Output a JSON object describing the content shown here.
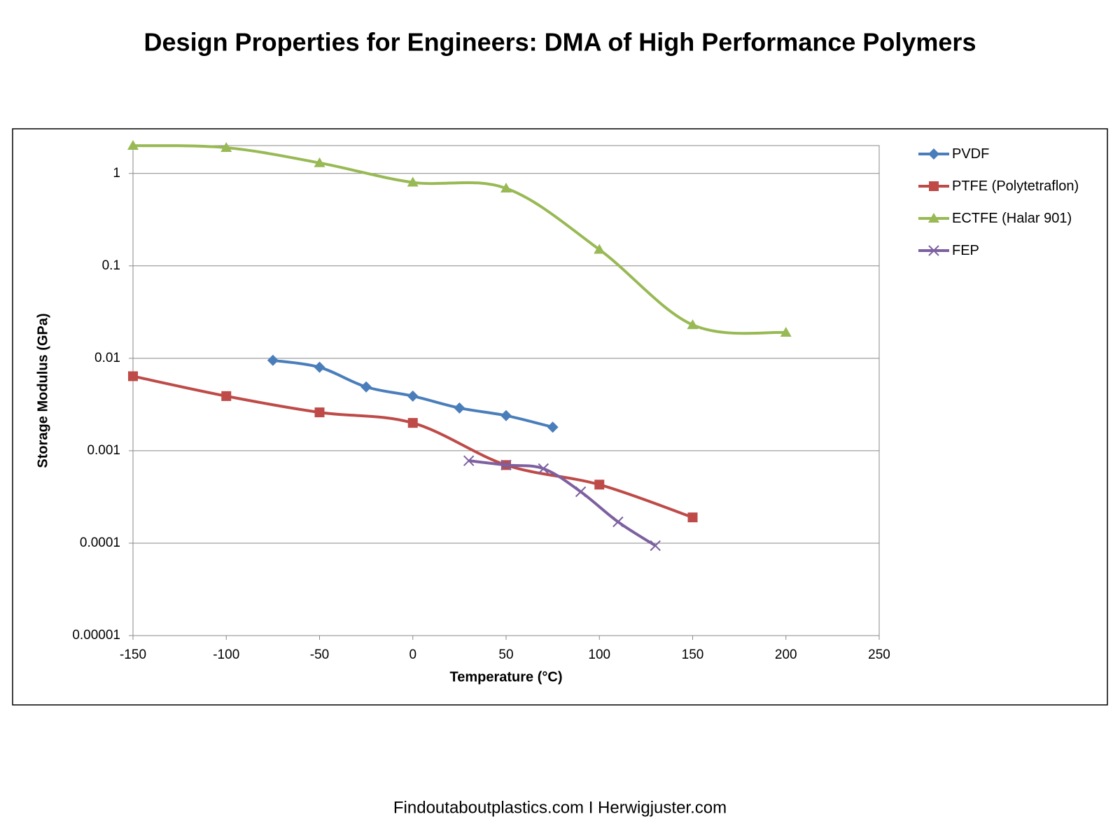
{
  "chart_data": {
    "type": "line",
    "title": "Design Properties for Engineers: DMA of High Performance Polymers",
    "x_label": "Temperature (°C)",
    "y_label": "Storage Modulus (GPa)",
    "footer": "Findoutaboutplastics.com I Herwigjuster.com",
    "xlim": [
      -150,
      250
    ],
    "xticks": [
      -150,
      -100,
      -50,
      0,
      50,
      100,
      150,
      200,
      250
    ],
    "ylim": [
      1e-05,
      2
    ],
    "y_scale": "log",
    "yticks": [
      {
        "value": 1e-05,
        "label": "0.00001"
      },
      0.0001,
      0.001,
      0.01,
      0.1,
      1
    ],
    "grid": true,
    "legend": "right",
    "smooth": true,
    "series": [
      {
        "name": "PVDF",
        "color": "#4a7ebb",
        "marker": "diamond",
        "x": [
          -75,
          -50,
          -25,
          0,
          25,
          50,
          75
        ],
        "values": [
          0.0095,
          0.008,
          0.0049,
          0.0039,
          0.0029,
          0.0024,
          0.0018
        ]
      },
      {
        "name": "PTFE (Polytetraflon)",
        "color": "#be4b48",
        "marker": "square",
        "x": [
          -150,
          -100,
          -50,
          0,
          50,
          100,
          150
        ],
        "values": [
          0.0064,
          0.0039,
          0.0026,
          0.002,
          0.0007,
          0.00043,
          0.00019
        ]
      },
      {
        "name": "ECTFE (Halar 901)",
        "color": "#98b954",
        "marker": "triangle",
        "x": [
          -150,
          -100,
          -50,
          0,
          50,
          100,
          150,
          200
        ],
        "values": [
          2,
          1.9,
          1.3,
          0.8,
          0.69,
          0.15,
          0.023,
          0.019
        ]
      },
      {
        "name": "FEP",
        "color": "#7d60a0",
        "marker": "x",
        "x": [
          30,
          50,
          70,
          90,
          110,
          130
        ],
        "values": [
          0.00078,
          0.0007,
          0.00064,
          0.00036,
          0.00017,
          9.4e-05
        ]
      }
    ]
  }
}
